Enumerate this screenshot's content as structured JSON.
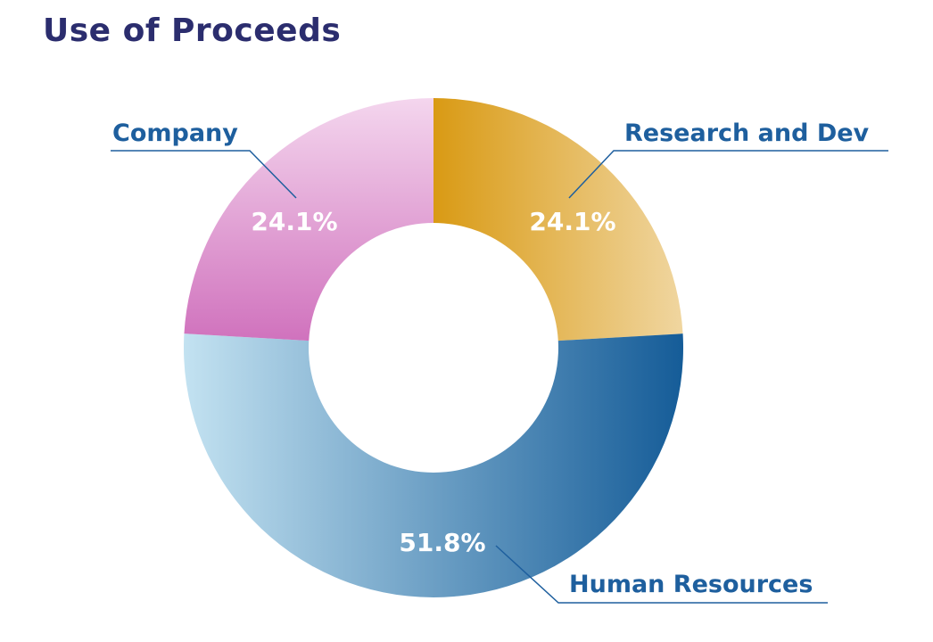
{
  "title": "Use of Proceeds",
  "chart_data": {
    "type": "pie",
    "variant": "donut",
    "title": "Use of Proceeds",
    "slices": [
      {
        "name": "Research and Dev",
        "value": 24.1,
        "label": "24.1%"
      },
      {
        "name": "Human Resources",
        "value": 51.8,
        "label": "51.8%"
      },
      {
        "name": "Company",
        "value": 24.1,
        "label": "24.1%"
      }
    ],
    "colors": {
      "Research and Dev": [
        "#d99a14",
        "#f0d6a0"
      ],
      "Human Resources": [
        "#c3e2f1",
        "#155c98"
      ],
      "Company": [
        "#f4d6ee",
        "#d072bd"
      ],
      "label_text": "#1e5f9e",
      "title_text": "#2b2d6e"
    }
  }
}
